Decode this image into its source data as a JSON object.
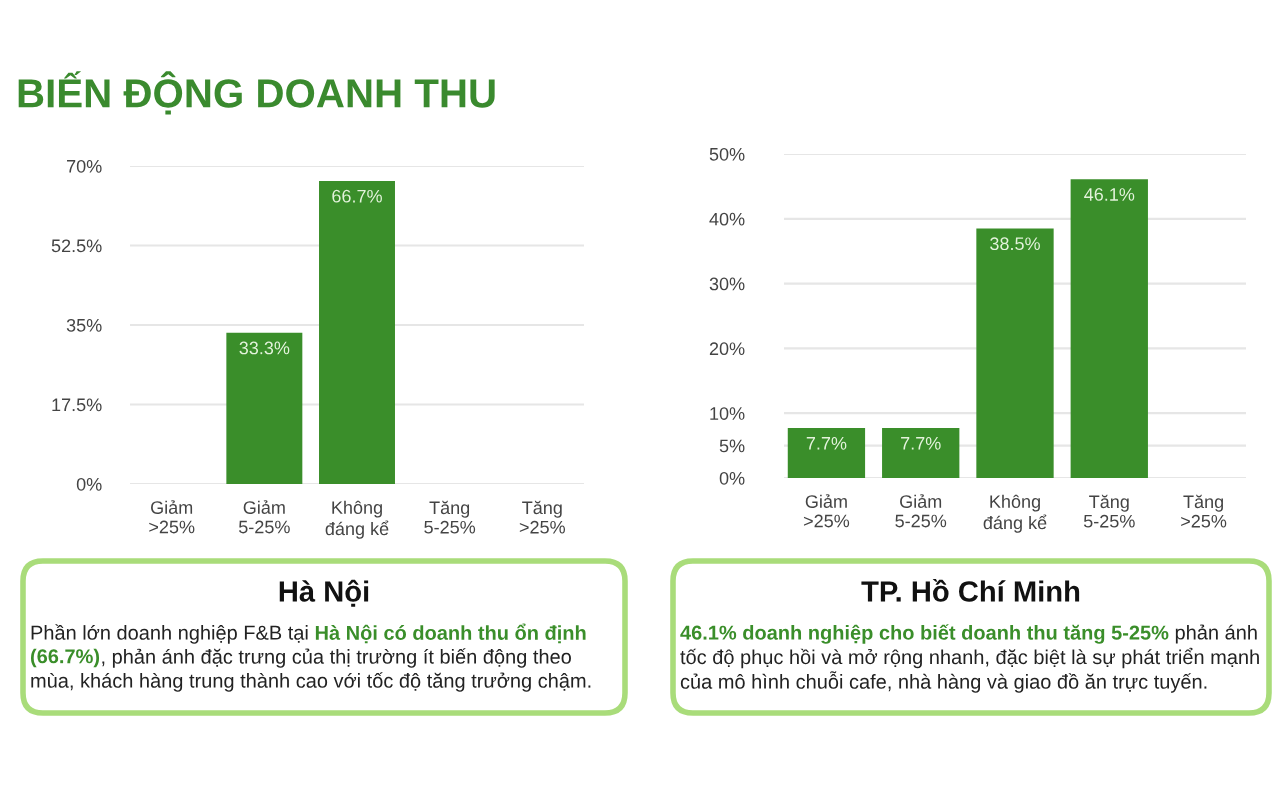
{
  "chart_data": [
    {
      "type": "bar",
      "title": "BIẾN ĐỘNG DOANH THU",
      "categories": [
        "Giảm\n>25%",
        "Giảm\n5-25%",
        "Không\nđáng kể",
        "Tăng\n5-25%",
        "Tăng\n>25%"
      ],
      "values": [
        0,
        33.3,
        66.7,
        0,
        0
      ],
      "value_labels": [
        null,
        "33.3%",
        "66.7%",
        null,
        null
      ],
      "color": "#3a8e2a",
      "ylim": [
        0,
        70
      ],
      "yticks": [
        {
          "value": 0,
          "label": "0%"
        },
        {
          "value": 17.5,
          "label": "17.5%"
        },
        {
          "value": 35,
          "label": "35%"
        },
        {
          "value": 52.5,
          "label": "52.5%"
        },
        {
          "value": 70,
          "label": "70%"
        }
      ],
      "grid": "y"
    },
    {
      "type": "bar",
      "categories": [
        "Giảm\n>25%",
        "Giảm\n5-25%",
        "Không\nđáng kể",
        "Tăng\n5-25%",
        "Tăng\n>25%"
      ],
      "values": [
        7.7,
        7.7,
        38.5,
        46.1,
        0
      ],
      "value_labels": [
        "7.7%",
        "7.7%",
        "38.5%",
        "46.1%",
        null
      ],
      "color": "#3a8e2a",
      "ylim": [
        0,
        50
      ],
      "yticks": [
        {
          "value": 0,
          "label": "0%"
        },
        {
          "value": 5,
          "label": "5%"
        },
        {
          "value": 10,
          "label": "10%"
        },
        {
          "value": 20,
          "label": "20%"
        },
        {
          "value": 30,
          "label": "30%"
        },
        {
          "value": 40,
          "label": "40%"
        },
        {
          "value": 50,
          "label": "50%"
        }
      ],
      "grid": "y"
    },
    {
      "type": "other",
      "title": "Hà Nội",
      "annotations": [
        "Phần lớn doanh nghiệp F&B tại ",
        "Hà Nội có doanh thu ổn định (66.7%)",
        ", phản ánh đặc trưng của thị trường ít biến động theo mùa, khách hàng trung thành cao với tốc độ tăng trưởng chậm."
      ],
      "colors": [
        null,
        "#3a8e2a",
        null
      ]
    },
    {
      "type": "other",
      "title": "TP. Hồ Chí Minh",
      "annotations": [
        "46.1% doanh nghiệp cho biết doanh thu tăng 5-25%",
        " phản ánh tốc độ phục hồi và mở rộng nhanh, đặc biệt là sự phát triển mạnh của mô hình chuỗi cafe, nhà hàng và giao đồ ăn trực tuyến."
      ],
      "colors": [
        "#3a8e2a",
        null
      ]
    }
  ]
}
